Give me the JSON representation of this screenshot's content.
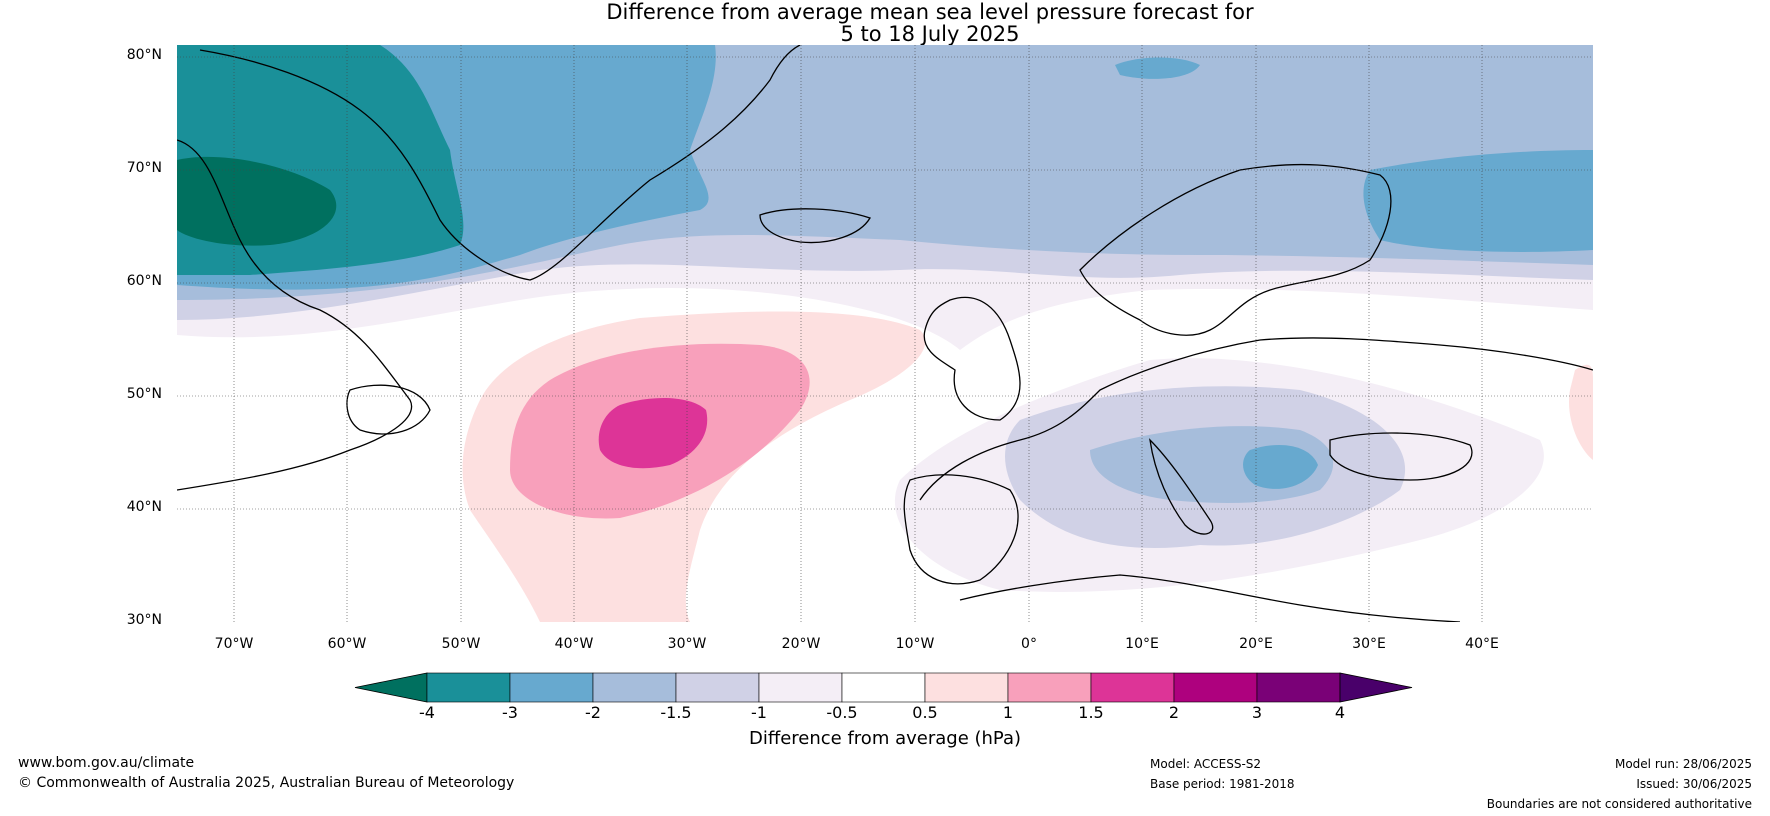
{
  "title_line1": "Difference from average mean sea level pressure forecast for",
  "title_line2": "5 to 18 July 2025",
  "lat_labels": [
    "80°N",
    "70°N",
    "60°N",
    "50°N",
    "40°N",
    "30°N"
  ],
  "lon_labels": [
    "70°W",
    "60°W",
    "50°W",
    "40°W",
    "30°W",
    "20°W",
    "10°W",
    "0°",
    "10°E",
    "20°E",
    "30°E",
    "40°E"
  ],
  "colorbar": {
    "ticks": [
      "-4",
      "-3",
      "-2",
      "-1.5",
      "-1",
      "-0.5",
      "0.5",
      "1",
      "1.5",
      "2",
      "3",
      "4"
    ],
    "colors": [
      "#00705f",
      "#1a9099",
      "#67a9cf",
      "#a6bddb",
      "#d0d1e6",
      "#f4eef6",
      "#ffffff",
      "#fde0e0",
      "#f8a0bb",
      "#dd3497",
      "#ae017e",
      "#7a0177",
      "#49006a"
    ],
    "label": "Difference from average (hPa)"
  },
  "footer": {
    "url": "www.bom.gov.au/climate",
    "copyright": "© Commonwealth of Australia 2025, Australian Bureau of Meteorology",
    "model": "Model: ACCESS-S2",
    "base_period": "Base period: 1981-2018",
    "model_run": "Model run: 28/06/2025",
    "issued": "Issued: 30/06/2025",
    "disclaimer": "Boundaries are not considered authoritative"
  }
}
